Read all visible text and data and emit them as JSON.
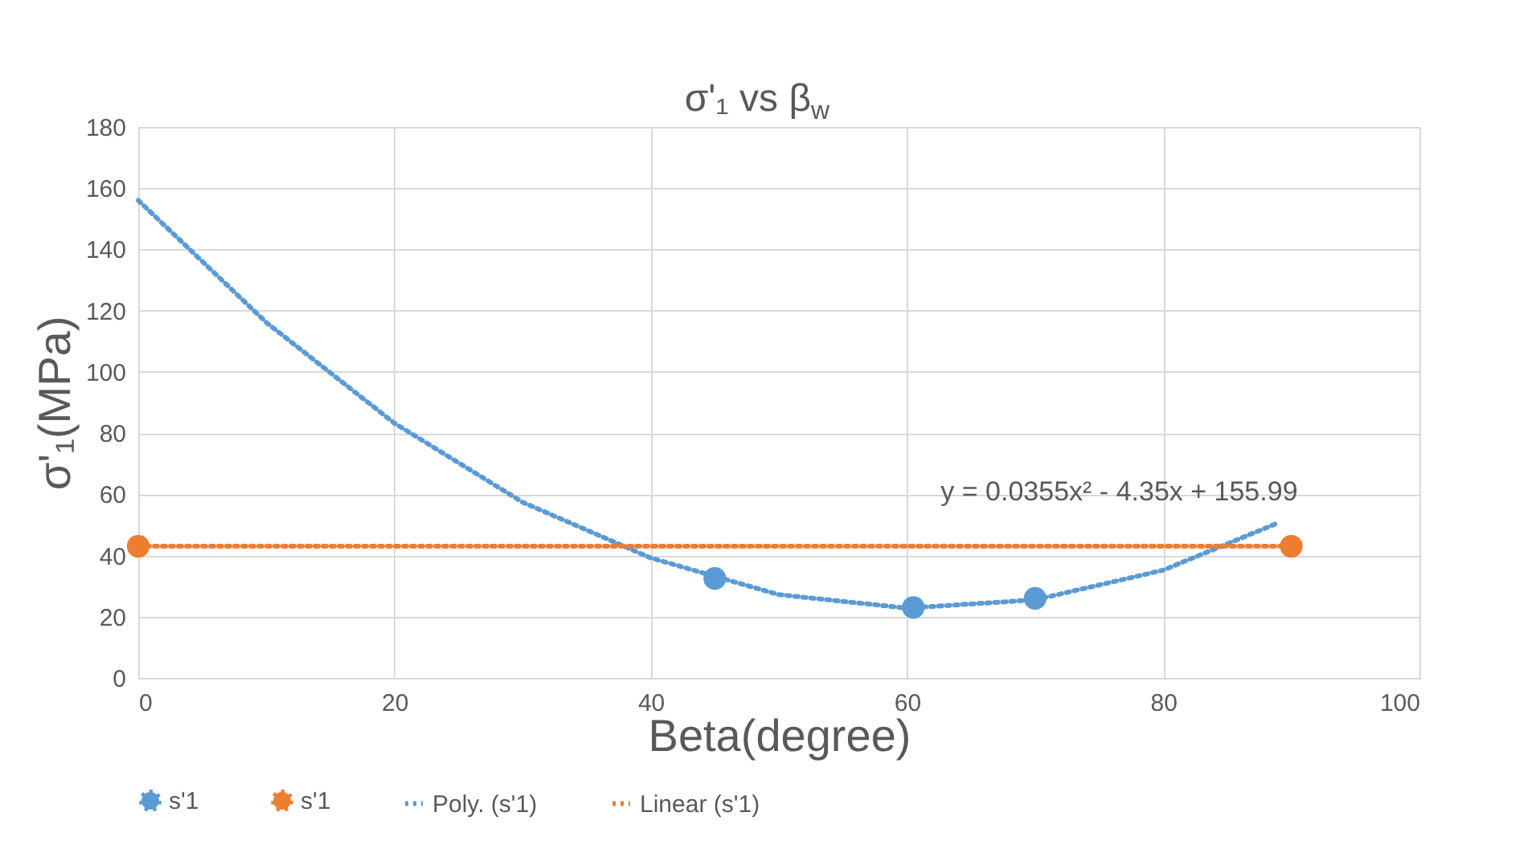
{
  "chart_data": {
    "type": "scatter",
    "title": "σ'₁ vs β$_{w}$",
    "xlabel": "Beta(degree)",
    "ylabel": "σ'₁(MPa)",
    "xlim": [
      0,
      100
    ],
    "xticks": [
      0,
      20,
      40,
      60,
      80,
      100
    ],
    "ylim": [
      0,
      180
    ],
    "yticks": [
      0,
      20,
      40,
      60,
      80,
      100,
      120,
      140,
      160,
      180
    ],
    "grid": true,
    "legend": "bottom",
    "marker": "circle",
    "series": [
      {
        "name": "s'1",
        "color": "#5b9bd5",
        "x": [
          45,
          60.5,
          70
        ],
        "values": [
          32.5,
          23,
          26
        ]
      },
      {
        "name": "s'1",
        "color": "#ed7d31",
        "x": [
          0,
          90
        ],
        "values": [
          43,
          43
        ]
      },
      {
        "name": "Poly. (s'1)",
        "type": "line",
        "line_style": "dotted",
        "marker": "none",
        "color": "#5b9bd5",
        "x": [
          0,
          10,
          20,
          30,
          40,
          50,
          60,
          70,
          80,
          89
        ],
        "values": [
          156,
          116.1,
          83.2,
          57.4,
          39.2,
          27.2,
          22.8,
          25.5,
          35.2,
          50.7
        ]
      },
      {
        "name": "Linear (s'1)",
        "type": "line",
        "line_style": "dotted",
        "marker": "none",
        "color": "#ed7d31",
        "x": [
          0,
          90
        ],
        "values": [
          43,
          43
        ]
      }
    ],
    "annotations": [
      "y = 0.0355x² - 4.35x + 155.99"
    ]
  }
}
